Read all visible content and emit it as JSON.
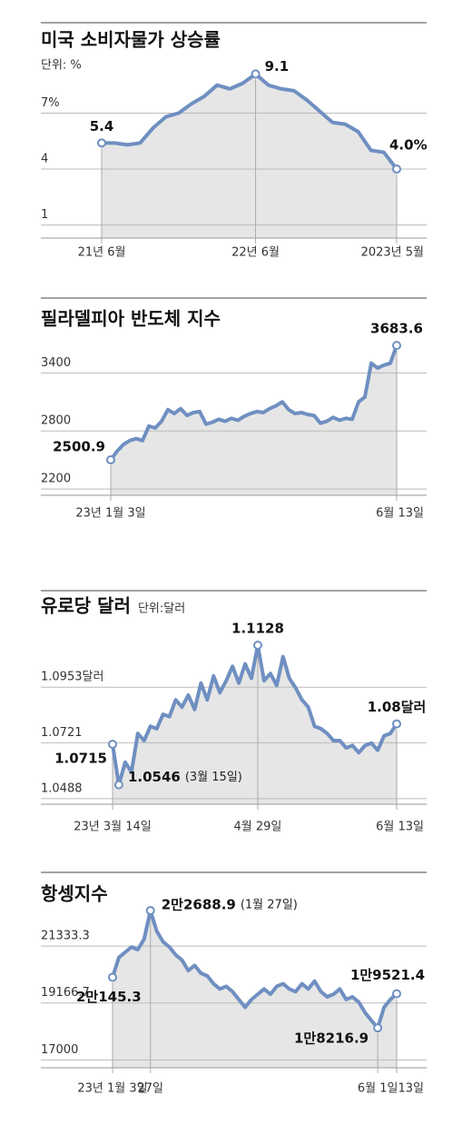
{
  "chart_data": [
    {
      "type": "line",
      "title": "미국 소비자물가 상승률",
      "subtitle": "단위: %",
      "categories": [
        "21년 6월",
        null,
        null,
        null,
        null,
        null,
        null,
        null,
        null,
        null,
        null,
        null,
        "22년 6월",
        null,
        null,
        null,
        null,
        null,
        null,
        null,
        null,
        null,
        null,
        "2023년 5월"
      ],
      "values": [
        5.4,
        5.4,
        5.3,
        5.4,
        6.2,
        6.8,
        7.0,
        7.5,
        7.9,
        8.5,
        8.3,
        8.6,
        9.1,
        8.5,
        8.3,
        8.2,
        7.7,
        7.1,
        6.5,
        6.4,
        6.0,
        5.0,
        4.9,
        4.0
      ],
      "value_labels": [
        "5.4",
        null,
        null,
        null,
        null,
        null,
        null,
        null,
        null,
        null,
        null,
        null,
        "9.1",
        null,
        null,
        null,
        null,
        null,
        null,
        null,
        null,
        null,
        null,
        "4.0%"
      ],
      "color": "#6f8fc1",
      "area_color": "#e6e6e6",
      "ylim": [
        0.3,
        9.8
      ],
      "yticks": [
        {
          "value": 7,
          "label": "7%"
        },
        4,
        1
      ],
      "grid": true
    },
    {
      "type": "line",
      "title": "필라델피아 반도체 지수",
      "categories": [
        "23년 1월 3일",
        null,
        null,
        null,
        null,
        null,
        null,
        null,
        null,
        null,
        null,
        null,
        null,
        null,
        null,
        null,
        null,
        null,
        null,
        null,
        null,
        null,
        null,
        null,
        null,
        null,
        null,
        null,
        null,
        null,
        null,
        null,
        null,
        null,
        null,
        null,
        null,
        null,
        null,
        null,
        null,
        null,
        null,
        null,
        null,
        "6월 13일"
      ],
      "values": [
        2500.9,
        2590,
        2660,
        2700,
        2720,
        2700,
        2850,
        2830,
        2900,
        3020,
        2980,
        3030,
        2960,
        2990,
        3000,
        2870,
        2890,
        2920,
        2900,
        2930,
        2910,
        2950,
        2980,
        3000,
        2990,
        3030,
        3060,
        3100,
        3020,
        2980,
        2990,
        2970,
        2960,
        2880,
        2900,
        2940,
        2910,
        2930,
        2920,
        3100,
        3150,
        3500,
        3450,
        3480,
        3500,
        3683.6
      ],
      "value_labels": [
        "2500.9",
        null,
        null,
        null,
        null,
        null,
        null,
        null,
        null,
        null,
        null,
        null,
        null,
        null,
        null,
        null,
        null,
        null,
        null,
        null,
        null,
        null,
        null,
        null,
        null,
        null,
        null,
        null,
        null,
        null,
        null,
        null,
        null,
        null,
        null,
        null,
        null,
        null,
        null,
        null,
        null,
        null,
        null,
        null,
        null,
        "3683.6"
      ],
      "color": "#6f8fc1",
      "area_color": "#e6e6e6",
      "ylim": [
        2135,
        3760
      ],
      "yticks": [
        3400,
        2800,
        2200
      ],
      "grid": true
    },
    {
      "type": "line",
      "title": "유로당 달러",
      "subtitle": "단위:달러",
      "categories": [
        "23년 3월 14일",
        null,
        null,
        null,
        null,
        null,
        null,
        null,
        null,
        null,
        null,
        null,
        null,
        null,
        null,
        null,
        null,
        null,
        null,
        null,
        null,
        null,
        null,
        "4월 29일",
        null,
        null,
        null,
        null,
        null,
        null,
        null,
        null,
        null,
        null,
        null,
        null,
        null,
        null,
        null,
        null,
        null,
        null,
        null,
        null,
        null,
        "6월 13일"
      ],
      "values": [
        1.0715,
        1.0546,
        1.064,
        1.06,
        1.076,
        1.073,
        1.079,
        1.078,
        1.084,
        1.083,
        1.09,
        1.087,
        1.092,
        1.086,
        1.097,
        1.09,
        1.1,
        1.093,
        1.098,
        1.104,
        1.097,
        1.105,
        1.099,
        1.1128,
        1.098,
        1.101,
        1.096,
        1.108,
        1.099,
        1.095,
        1.09,
        1.087,
        1.079,
        1.078,
        1.076,
        1.073,
        1.073,
        1.07,
        1.071,
        1.068,
        1.071,
        1.072,
        1.069,
        1.075,
        1.076,
        1.08
      ],
      "value_labels": [
        "1.0715",
        "1.0546",
        null,
        null,
        null,
        null,
        null,
        null,
        null,
        null,
        null,
        null,
        null,
        null,
        null,
        null,
        null,
        null,
        null,
        null,
        null,
        null,
        null,
        "1.1128",
        null,
        null,
        null,
        null,
        null,
        null,
        null,
        null,
        null,
        null,
        null,
        null,
        null,
        null,
        null,
        null,
        null,
        null,
        null,
        null,
        null,
        "1.08달러"
      ],
      "annotations": [
        {
          "text": "(3월 15일)",
          "point": 1
        }
      ],
      "color": "#6f8fc1",
      "area_color": "#e6e6e6",
      "ylim": [
        1.0465,
        1.12
      ],
      "yticks": [
        {
          "value": 1.0953,
          "label": "1.0953달러"
        },
        1.0721,
        1.0488
      ],
      "grid": true
    },
    {
      "type": "line",
      "title": "항셍지수",
      "categories": [
        "23년 1월 3일",
        null,
        null,
        null,
        null,
        null,
        "27일",
        null,
        null,
        null,
        null,
        null,
        null,
        null,
        null,
        null,
        null,
        null,
        null,
        null,
        null,
        null,
        null,
        null,
        null,
        null,
        null,
        null,
        null,
        null,
        null,
        null,
        null,
        null,
        null,
        null,
        null,
        null,
        null,
        null,
        null,
        null,
        "6월 1일",
        null,
        null,
        "13일"
      ],
      "values": [
        20145.3,
        20900,
        21100,
        21300,
        21200,
        21600,
        22688.9,
        21900,
        21500,
        21300,
        21000,
        20800,
        20400,
        20600,
        20300,
        20200,
        19900,
        19700,
        19800,
        19600,
        19300,
        19000,
        19300,
        19500,
        19700,
        19500,
        19800,
        19900,
        19700,
        19600,
        19900,
        19700,
        20000,
        19600,
        19400,
        19500,
        19700,
        19300,
        19400,
        19200,
        18800,
        18500,
        18216.9,
        19000,
        19300,
        19521.4
      ],
      "value_labels": [
        "2만145.3",
        null,
        null,
        null,
        null,
        null,
        "2만2688.9",
        null,
        null,
        null,
        null,
        null,
        null,
        null,
        null,
        null,
        null,
        null,
        null,
        null,
        null,
        null,
        null,
        null,
        null,
        null,
        null,
        null,
        null,
        null,
        null,
        null,
        null,
        null,
        null,
        null,
        null,
        null,
        null,
        null,
        null,
        null,
        "1만8216.9",
        null,
        null,
        "1만9521.4"
      ],
      "annotations": [
        {
          "text": "(1월 27일)",
          "point": 6
        }
      ],
      "color": "#6f8fc1",
      "area_color": "#e6e6e6",
      "ylim": [
        16700,
        23000
      ],
      "yticks": [
        21333.3,
        19166.7,
        17000
      ],
      "grid": true
    }
  ]
}
